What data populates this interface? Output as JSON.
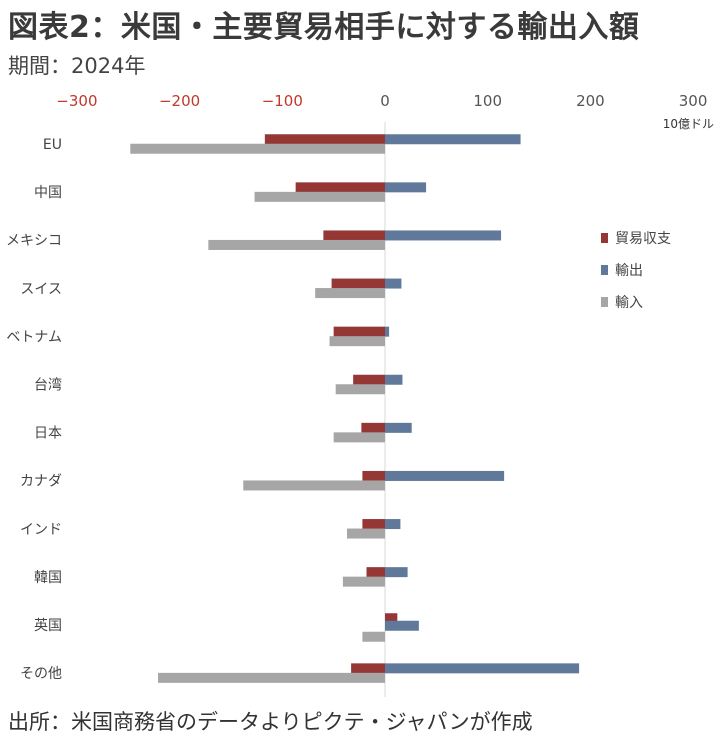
{
  "title": "図表2：米国・主要貿易相手に対する輸出入額",
  "subtitle": "期間：2024年",
  "source": "出所：米国商務省のデータよりピクテ・ジャパンが作成",
  "chart_data": {
    "type": "bar",
    "orientation": "horizontal",
    "unit": "10億ドル",
    "xlim": [
      -300,
      300
    ],
    "ticks": [
      "−300",
      "−200",
      "−100",
      "0",
      "100",
      "200",
      "300"
    ],
    "tick_values": [
      -300,
      -200,
      -100,
      0,
      100,
      200,
      300
    ],
    "grid": false,
    "legend_position": "right",
    "categories": [
      "EU",
      "中国",
      "メキシコ",
      "スイス",
      "ベトナム",
      "台湾",
      "日本",
      "カナダ",
      "インド",
      "韓国",
      "英国",
      "その他"
    ],
    "series": [
      {
        "name": "貿易収支",
        "color": "#953735",
        "values": [
          -117,
          -87,
          -60,
          -52,
          -50,
          -31,
          -23,
          -22,
          -22,
          -18,
          12,
          -33
        ]
      },
      {
        "name": "輸出",
        "color": "#60799b",
        "values": [
          132,
          40,
          113,
          16,
          4,
          17,
          26,
          116,
          15,
          22,
          33,
          189
        ]
      },
      {
        "name": "輸入",
        "color": "#a6a6a6",
        "values": [
          -248,
          -127,
          -172,
          -68,
          -54,
          -48,
          -50,
          -138,
          -37,
          -41,
          -22,
          -221
        ]
      }
    ]
  }
}
